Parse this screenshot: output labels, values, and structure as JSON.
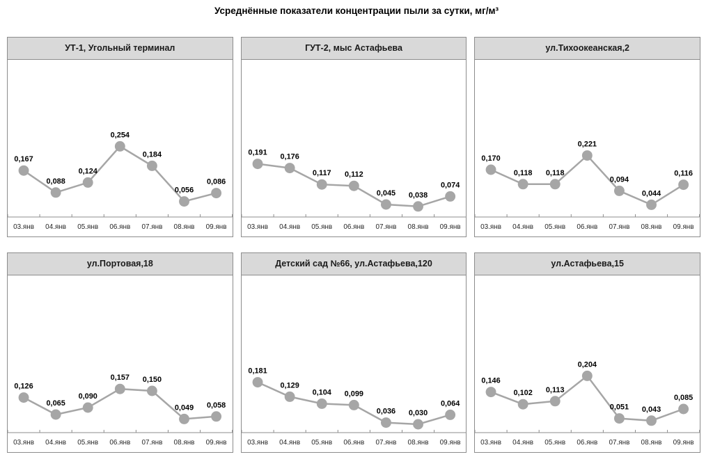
{
  "page_title": "Усреднённые показатели концентрации пыли за сутки, мг/м³",
  "colors": {
    "series_gray": "#a6a6a6",
    "marker_gray": "#a6a6a6",
    "header_bg": "#d9d9d9",
    "panel_border": "#8c8c8c",
    "axis": "#8c8c8c",
    "value_label_text": "#000000",
    "tick_label_text": "#262626"
  },
  "chart_data": [
    {
      "type": "line",
      "title": "УТ-1, Угольный терминал",
      "categories": [
        "03.янв",
        "04.янв",
        "05.янв",
        "06.янв",
        "07.янв",
        "08.янв",
        "09.янв"
      ],
      "values": [
        0.167,
        0.088,
        0.124,
        0.254,
        0.184,
        0.056,
        0.086
      ],
      "value_labels": [
        "0,167",
        "0,088",
        "0,124",
        "0,254",
        "0,184",
        "0,056",
        "0,086"
      ],
      "xlabel": "",
      "ylabel": "",
      "ylim": [
        0,
        0.55
      ],
      "grid": false,
      "legend": "none"
    },
    {
      "type": "line",
      "title": "ГУТ-2, мыс Астафьева",
      "categories": [
        "03.янв",
        "04.янв",
        "05.янв",
        "06.янв",
        "07.янв",
        "08.янв",
        "09.янв"
      ],
      "values": [
        0.191,
        0.176,
        0.117,
        0.112,
        0.045,
        0.038,
        0.074
      ],
      "value_labels": [
        "0,191",
        "0,176",
        "0,117",
        "0,112",
        "0,045",
        "0,038",
        "0,074"
      ],
      "xlabel": "",
      "ylabel": "",
      "ylim": [
        0,
        0.55
      ],
      "grid": false,
      "legend": "none"
    },
    {
      "type": "line",
      "title": "ул.Тихоокеанская,2",
      "categories": [
        "03.янв",
        "04.янв",
        "05.янв",
        "06.янв",
        "07.янв",
        "08.янв",
        "09.янв"
      ],
      "values": [
        0.17,
        0.118,
        0.118,
        0.221,
        0.094,
        0.044,
        0.116
      ],
      "value_labels": [
        "0,170",
        "0,118",
        "0,118",
        "0,221",
        "0,094",
        "0,044",
        "0,116"
      ],
      "xlabel": "",
      "ylabel": "",
      "ylim": [
        0,
        0.55
      ],
      "grid": false,
      "legend": "none"
    },
    {
      "type": "line",
      "title": "ул.Портовая,18",
      "categories": [
        "03.янв",
        "04.янв",
        "05.янв",
        "06.янв",
        "07.янв",
        "08.янв",
        "09.янв"
      ],
      "values": [
        0.126,
        0.065,
        0.09,
        0.157,
        0.15,
        0.049,
        0.058
      ],
      "value_labels": [
        "0,126",
        "0,065",
        "0,090",
        "0,157",
        "0,150",
        "0,049",
        "0,058"
      ],
      "xlabel": "",
      "ylabel": "",
      "ylim": [
        0,
        0.55
      ],
      "grid": false,
      "legend": "none"
    },
    {
      "type": "line",
      "title": "Детский сад №66, ул.Астафьева,120",
      "categories": [
        "03.янв",
        "04.янв",
        "05.янв",
        "06.янв",
        "07.янв",
        "08.янв",
        "09.янв"
      ],
      "values": [
        0.181,
        0.129,
        0.104,
        0.099,
        0.036,
        0.03,
        0.064
      ],
      "value_labels": [
        "0,181",
        "0,129",
        "0,104",
        "0,099",
        "0,036",
        "0,030",
        "0,064"
      ],
      "xlabel": "",
      "ylabel": "",
      "ylim": [
        0,
        0.55
      ],
      "grid": false,
      "legend": "none"
    },
    {
      "type": "line",
      "title": "ул.Астафьева,15",
      "categories": [
        "03.янв",
        "04.янв",
        "05.янв",
        "06.янв",
        "07.янв",
        "08.янв",
        "09.янв"
      ],
      "values": [
        0.146,
        0.102,
        0.113,
        0.204,
        0.051,
        0.043,
        0.085
      ],
      "value_labels": [
        "0,146",
        "0,102",
        "0,113",
        "0,204",
        "0,051",
        "0,043",
        "0,085"
      ],
      "xlabel": "",
      "ylabel": "",
      "ylim": [
        0,
        0.55
      ],
      "grid": false,
      "legend": "none"
    }
  ]
}
